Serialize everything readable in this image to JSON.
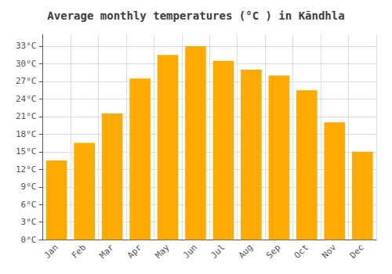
{
  "chart_data": {
    "type": "bar",
    "title": "Average monthly temperatures (°C ) in Kāndhla",
    "categories": [
      "Jan",
      "Feb",
      "Mar",
      "Apr",
      "May",
      "Jun",
      "Jul",
      "Aug",
      "Sep",
      "Oct",
      "Nov",
      "Dec"
    ],
    "values": [
      13.5,
      16.5,
      21.5,
      27.5,
      31.5,
      33.0,
      30.5,
      29.0,
      28.0,
      25.5,
      20.0,
      15.0
    ],
    "color": "#FFAA00",
    "ylim": [
      0,
      35
    ],
    "yticks": [
      {
        "value": 0,
        "label": "0°C"
      },
      {
        "value": 3,
        "label": "3°C"
      },
      {
        "value": 6,
        "label": "6°C"
      },
      {
        "value": 9,
        "label": "9°C"
      },
      {
        "value": 12,
        "label": "12°C"
      },
      {
        "value": 15,
        "label": "15°C"
      },
      {
        "value": 18,
        "label": "18°C"
      },
      {
        "value": 21,
        "label": "21°C"
      },
      {
        "value": 24,
        "label": "24°C"
      },
      {
        "value": 27,
        "label": "27°C"
      },
      {
        "value": 30,
        "label": "30°C"
      },
      {
        "value": 33,
        "label": "33°C"
      }
    ],
    "grid": true
  }
}
